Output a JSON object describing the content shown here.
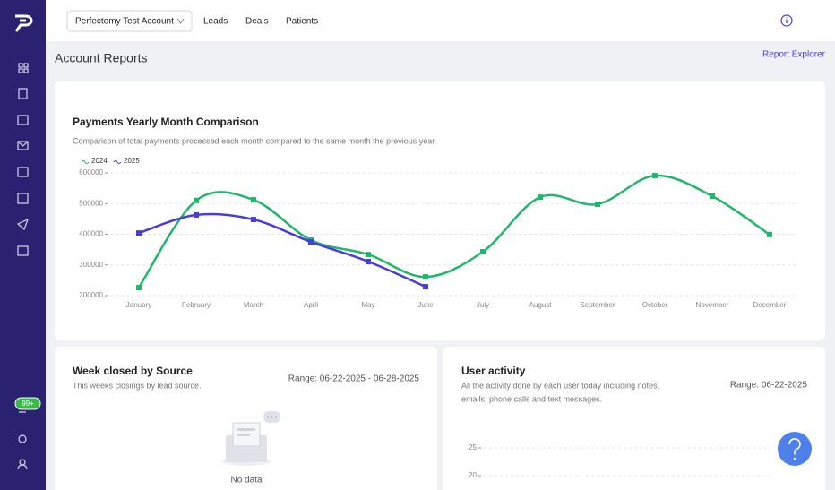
{
  "header": {
    "account": "Perfectomy Test Account",
    "nav": [
      "Leads",
      "Deals",
      "Patients"
    ]
  },
  "page_title": "Account Reports",
  "report_explorer": "Report Explorer",
  "badge": "99+",
  "cards": [
    {
      "title": "Week closed by Source",
      "subtitle": "This weeks closings by lead source.",
      "range": "Range: 06-22-2025 - 06-28-2025",
      "empty": "No data"
    }
  ],
  "chart_data": [
    {
      "type": "line",
      "title": "Payments Yearly Month Comparison",
      "subtitle": "Comparison of total payments processed each month compared to the same month the previous year.",
      "categories": [
        "January",
        "February",
        "March",
        "April",
        "May",
        "June",
        "July",
        "August",
        "September",
        "October",
        "November",
        "December"
      ],
      "series": [
        {
          "name": "2024",
          "color": "#1fb86a",
          "values": [
            226000,
            510000,
            512000,
            381000,
            334000,
            261000,
            343000,
            521000,
            498000,
            591000,
            524000,
            399000
          ]
        },
        {
          "name": "2025",
          "color": "#4a3be0",
          "values": [
            404000,
            463000,
            448000,
            375000,
            311000,
            229000,
            null,
            null,
            null,
            null,
            null,
            null
          ]
        }
      ],
      "ylim": [
        200000,
        600000
      ],
      "yticks": [
        200000,
        300000,
        400000,
        500000,
        600000
      ],
      "grid": true,
      "legend": "top-left"
    },
    {
      "type": "line",
      "title": "User activity",
      "subtitle_lines": [
        "All the activity done by each user today including notes,",
        "emails, phone calls and text messages."
      ],
      "range": "Range: 06-22-2025",
      "ylim": [
        0,
        25
      ],
      "yticks": [
        20,
        25
      ],
      "grid": true
    }
  ]
}
